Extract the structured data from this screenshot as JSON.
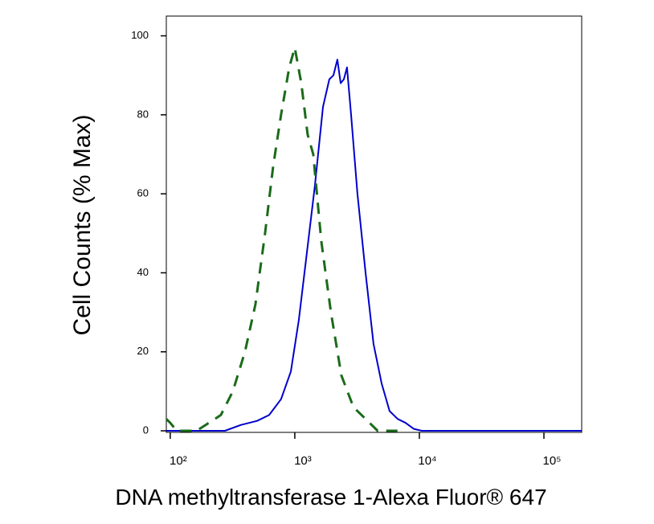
{
  "chart_data": {
    "type": "line",
    "xlabel": "DNA methyltransferase 1-Alexa Fluor® 647",
    "ylabel": "Cell Counts (% Max)",
    "xscale": "log",
    "xlim": [
      93,
      201000
    ],
    "ylim": [
      -0.4,
      105
    ],
    "xticks": [
      {
        "value": 100,
        "label": "10²"
      },
      {
        "value": 1000,
        "label": "10³"
      },
      {
        "value": 10000,
        "label": "10⁴"
      },
      {
        "value": 100000,
        "label": "10⁵"
      }
    ],
    "yticks": [
      0,
      20,
      40,
      60,
      80,
      100
    ],
    "series": [
      {
        "color": "#0000cc",
        "dash": "solid",
        "x": [
          93,
          275,
          370,
          498,
          622,
          776,
          929,
          1077,
          1250,
          1449,
          1683,
          1894,
          2042,
          2198,
          2333,
          2477,
          2624,
          2831,
          3186,
          3698,
          4285,
          4977,
          5768,
          6699,
          7762,
          9016,
          10450,
          201000
        ],
        "values": [
          0,
          0,
          1.5,
          2.5,
          4,
          8,
          15,
          28,
          45,
          62,
          82,
          89,
          90,
          94,
          88,
          89,
          92,
          80,
          60,
          40,
          22,
          12,
          5,
          3,
          2,
          0.5,
          0,
          0
        ]
      },
      {
        "color": "#1a6b1a",
        "dash": "dashed",
        "x": [
          93,
          100,
          113,
          163,
          204,
          255,
          318,
          398,
          483,
          577,
          670,
          776,
          902,
          1000,
          1127,
          1268,
          1406,
          1633,
          1950,
          2366,
          2958,
          3698,
          4621,
          7211
        ],
        "values": [
          3,
          2,
          0,
          0,
          2,
          4,
          10,
          20,
          32,
          50,
          67,
          80,
          92,
          97,
          88,
          75,
          70,
          48,
          30,
          14,
          6,
          3,
          0,
          0
        ]
      }
    ]
  }
}
